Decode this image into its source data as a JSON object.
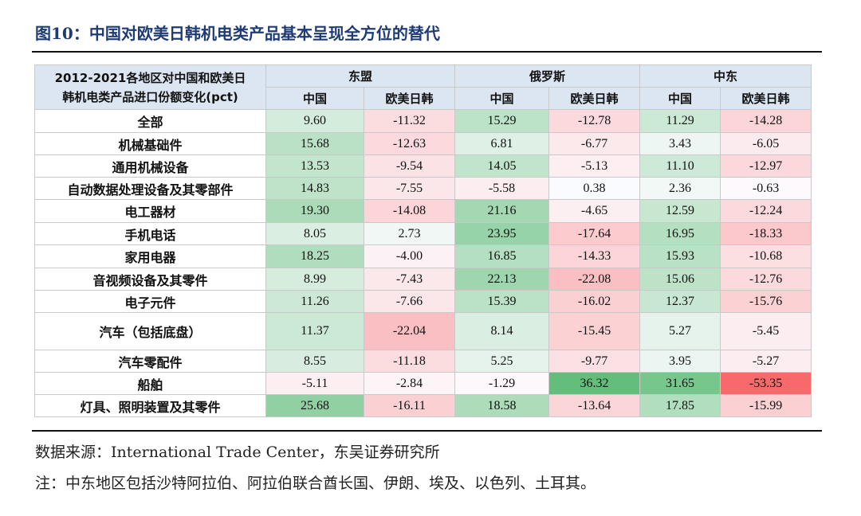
{
  "title": "图10：中国对欧美日韩机电类产品基本呈现全方位的替代",
  "table": {
    "corner_line1": "2012-2021各地区对中国和欧美日",
    "corner_line2": "韩机电类产品进口份额变化(pct)",
    "regions": [
      "东盟",
      "俄罗斯",
      "中东"
    ],
    "subheaders": [
      "中国",
      "欧美日韩",
      "中国",
      "欧美日韩",
      "中国",
      "欧美日韩"
    ],
    "rows": [
      {
        "label": "全部",
        "values": [
          "9.60",
          "-11.32",
          "15.29",
          "-12.78",
          "11.29",
          "-14.28"
        ]
      },
      {
        "label": "机械基础件",
        "values": [
          "15.68",
          "-12.63",
          "6.81",
          "-6.77",
          "3.43",
          "-6.05"
        ]
      },
      {
        "label": "通用机械设备",
        "values": [
          "13.53",
          "-9.54",
          "14.05",
          "-5.13",
          "11.10",
          "-12.97"
        ]
      },
      {
        "label": "自动数据处理设备及其零部件",
        "values": [
          "14.83",
          "-7.55",
          "-5.58",
          "0.38",
          "2.36",
          "-0.63"
        ]
      },
      {
        "label": "电工器材",
        "values": [
          "19.30",
          "-14.08",
          "21.16",
          "-4.65",
          "12.59",
          "-12.24"
        ]
      },
      {
        "label": "手机电话",
        "values": [
          "8.05",
          "2.73",
          "23.95",
          "-17.64",
          "16.95",
          "-18.33"
        ]
      },
      {
        "label": "家用电器",
        "values": [
          "18.25",
          "-4.00",
          "16.85",
          "-14.33",
          "15.93",
          "-10.68"
        ]
      },
      {
        "label": "音视频设备及其零件",
        "values": [
          "8.99",
          "-7.43",
          "22.13",
          "-22.08",
          "15.06",
          "-12.76"
        ]
      },
      {
        "label": "电子元件",
        "values": [
          "11.26",
          "-7.66",
          "15.39",
          "-16.02",
          "12.37",
          "-15.76"
        ]
      },
      {
        "label": "汽车（包括底盘）",
        "values": [
          "11.37",
          "-22.04",
          "8.14",
          "-15.45",
          "5.27",
          "-5.45"
        ]
      },
      {
        "label": "汽车零配件",
        "values": [
          "8.55",
          "-11.18",
          "5.25",
          "-9.77",
          "3.95",
          "-5.27"
        ]
      },
      {
        "label": "船舶",
        "values": [
          "-5.11",
          "-2.84",
          "-1.29",
          "36.32",
          "31.65",
          "-53.35"
        ]
      },
      {
        "label": "灯具、照明装置及其零件",
        "values": [
          "25.68",
          "-16.11",
          "18.58",
          "-13.64",
          "17.85",
          "-15.99"
        ]
      }
    ]
  },
  "colors": {
    "positive_full": "#63be7b",
    "negative_full": "#f8696b",
    "neutral": "#fcfcff",
    "header_bg": "#dce6f2",
    "title": "#1f3b73"
  },
  "source": "数据来源：International Trade Center，东吴证券研究所",
  "note": "注：中东地区包括沙特阿拉伯、阿拉伯联合酋长国、伊朗、埃及、以色列、土耳其。"
}
